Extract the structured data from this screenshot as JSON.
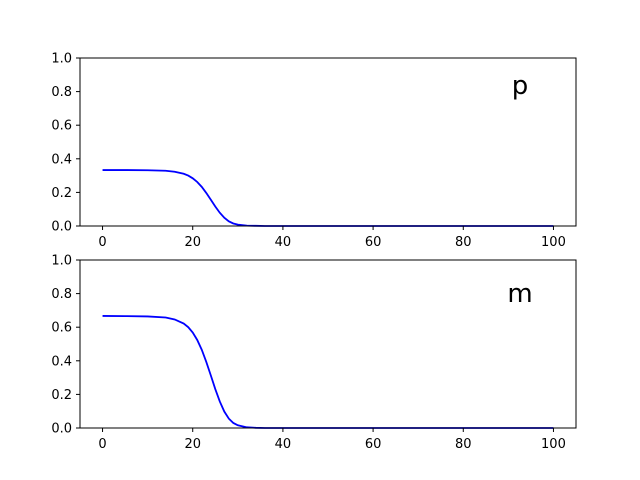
{
  "chart_data": [
    {
      "type": "line",
      "annotation": "p",
      "title": "",
      "xlabel": "",
      "ylabel": "",
      "xlim": [
        -5,
        105
      ],
      "ylim": [
        0,
        1
      ],
      "xticks": [
        0,
        20,
        40,
        60,
        80,
        100
      ],
      "yticks": [
        0.0,
        0.2,
        0.4,
        0.6,
        0.8,
        1.0
      ],
      "xtick_labels": [
        "0",
        "20",
        "40",
        "60",
        "80",
        "100"
      ],
      "ytick_labels": [
        "0.0",
        "0.2",
        "0.4",
        "0.6",
        "0.8",
        "1.0"
      ],
      "grid": false,
      "series": [
        {
          "color": "#0000ff",
          "x": [
            0,
            5,
            10,
            14,
            16,
            18,
            19,
            20,
            21,
            22,
            23,
            24,
            25,
            26,
            27,
            28,
            29,
            30,
            32,
            34,
            36,
            40,
            50,
            60,
            70,
            80,
            90,
            100
          ],
          "y": [
            0.333,
            0.333,
            0.332,
            0.329,
            0.323,
            0.311,
            0.3,
            0.284,
            0.262,
            0.233,
            0.197,
            0.157,
            0.116,
            0.079,
            0.049,
            0.028,
            0.015,
            0.008,
            0.002,
            0.001,
            0.0,
            0.0,
            0.0,
            0.0,
            0.0,
            0.0,
            0.0,
            0.0
          ]
        }
      ]
    },
    {
      "type": "line",
      "annotation": "m",
      "title": "",
      "xlabel": "",
      "ylabel": "",
      "xlim": [
        -5,
        105
      ],
      "ylim": [
        0,
        1
      ],
      "xticks": [
        0,
        20,
        40,
        60,
        80,
        100
      ],
      "yticks": [
        0.0,
        0.2,
        0.4,
        0.6,
        0.8,
        1.0
      ],
      "xtick_labels": [
        "0",
        "20",
        "40",
        "60",
        "80",
        "100"
      ],
      "ytick_labels": [
        "0.0",
        "0.2",
        "0.4",
        "0.6",
        "0.8",
        "1.0"
      ],
      "grid": false,
      "series": [
        {
          "color": "#0000ff",
          "x": [
            0,
            5,
            10,
            14,
            16,
            18,
            19,
            20,
            21,
            22,
            23,
            24,
            25,
            26,
            27,
            28,
            29,
            30,
            32,
            34,
            36,
            40,
            50,
            60,
            70,
            80,
            90,
            100
          ],
          "y": [
            0.667,
            0.666,
            0.664,
            0.658,
            0.646,
            0.622,
            0.6,
            0.568,
            0.524,
            0.466,
            0.394,
            0.314,
            0.232,
            0.158,
            0.098,
            0.056,
            0.03,
            0.016,
            0.004,
            0.001,
            0.0,
            0.0,
            0.0,
            0.0,
            0.0,
            0.0,
            0.0,
            0.0
          ]
        }
      ]
    }
  ]
}
